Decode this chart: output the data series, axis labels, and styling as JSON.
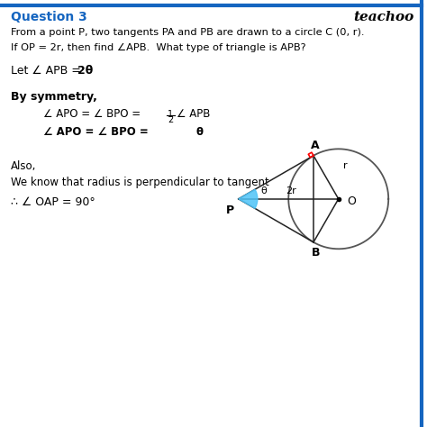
{
  "bg_color": "#ffffff",
  "title_text": "Question 3",
  "brand_text": "teachoo",
  "question_line1": "From a point P, two tangents PA and PB are drawn to a circle C (0, r).",
  "question_line2": "If OP = 2r, then find ∠APB.  What type of triangle is APB?",
  "let_text_prefix": "Let ∠ APB = ",
  "let_text_bold": "2θ",
  "symmetry_header": "By symmetry,",
  "eq1_left": "∠ APO = ∠ BPO = ",
  "eq1_frac_num": "1",
  "eq1_frac_den": "2",
  "eq1_right": "∠ APB",
  "eq2_prefix": "∠ APO = ∠ BPO = ",
  "eq2_bold": "θ",
  "also_text": "Also,",
  "we_know_text": "We know that radius is perpendicular to tangent",
  "therefore_text": "∴ ∠ OAP = 90°",
  "title_color": "#1565C0",
  "brand_color": "#000000",
  "question_color": "#000000",
  "text_color": "#000000",
  "blue_fill": "#4FC3F7",
  "diagram": {
    "P": [
      -2.0,
      0.0
    ],
    "O": [
      0.0,
      0.0
    ],
    "r": 1.0
  }
}
